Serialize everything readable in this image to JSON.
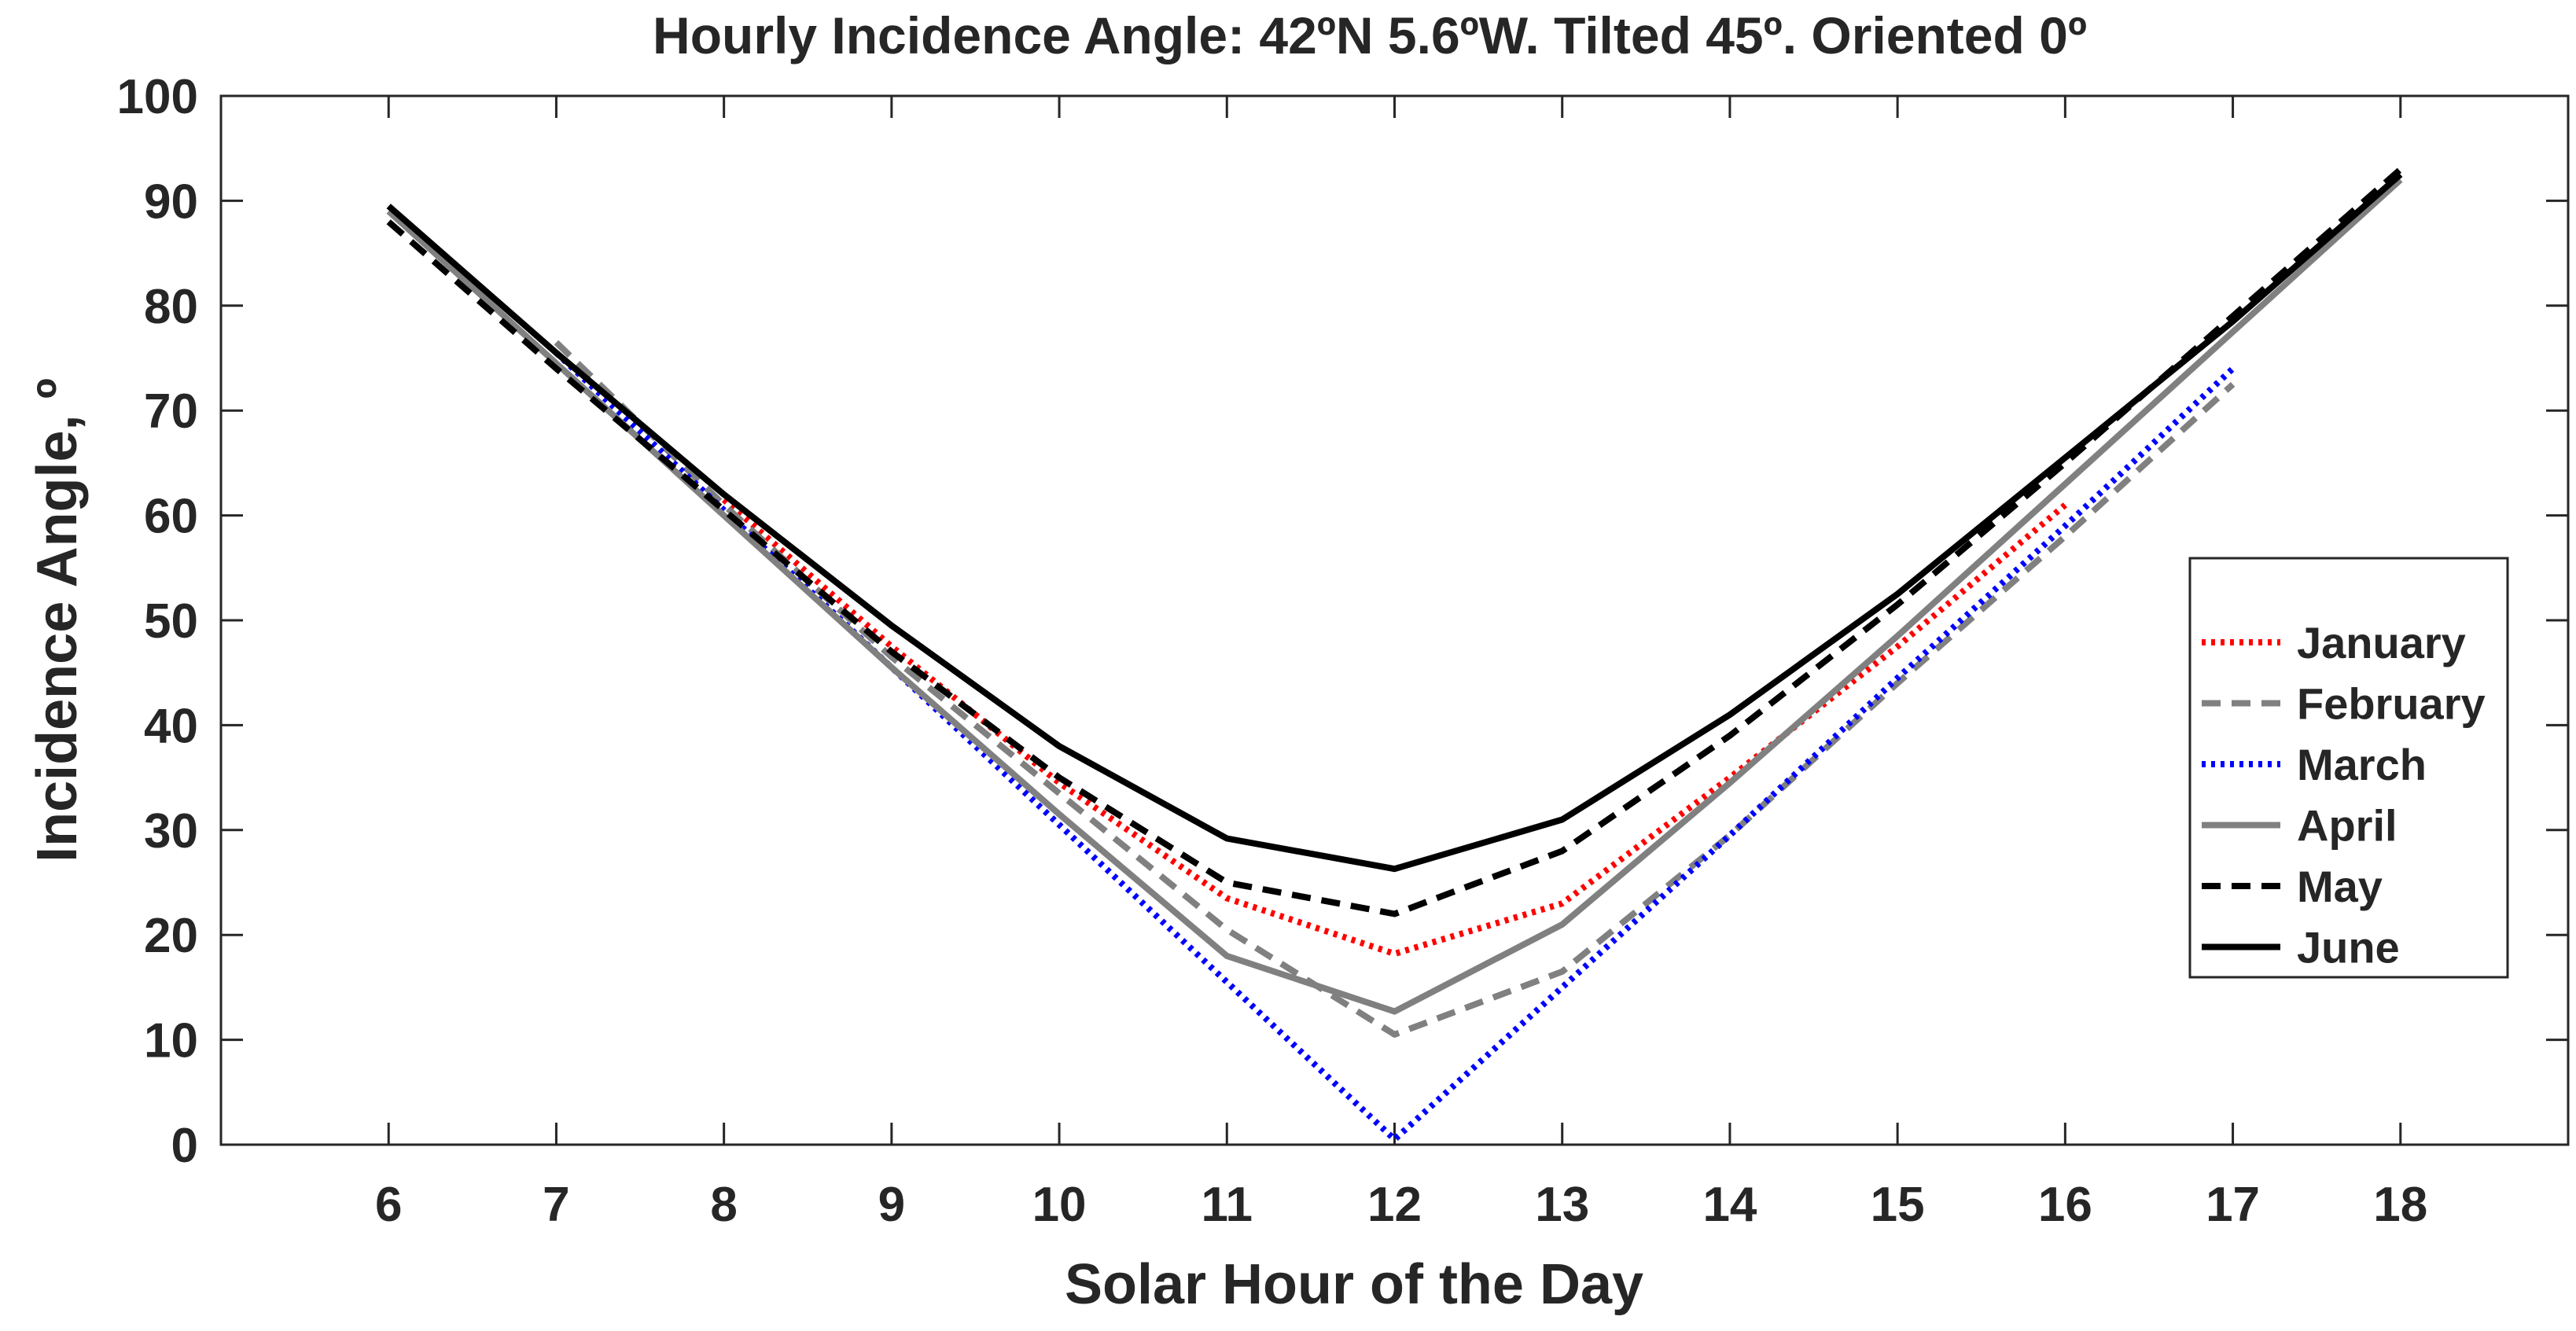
{
  "chart_data": {
    "type": "line",
    "title": "Hourly Incidence Angle: 42ºN 5.6ºW. Tilted 45º. Oriented 0º",
    "xlabel": "Solar Hour of the Day",
    "ylabel": "Incidence Angle, º",
    "xlim": [
      5,
      19
    ],
    "ylim": [
      0,
      100
    ],
    "xticks": [
      6,
      7,
      8,
      9,
      10,
      11,
      12,
      13,
      14,
      15,
      16,
      17,
      18
    ],
    "yticks": [
      0,
      10,
      20,
      30,
      40,
      50,
      60,
      70,
      80,
      90,
      100
    ],
    "grid": false,
    "legend_position": "center-right",
    "series": [
      {
        "name": "January",
        "color": "#ff0000",
        "dash": "dotted",
        "x": [
          8,
          9,
          10,
          11,
          12,
          13,
          14,
          15,
          16
        ],
        "y": [
          61.5,
          47.5,
          34.5,
          23.5,
          18.2,
          23,
          35,
          47.5,
          61
        ]
      },
      {
        "name": "February",
        "color": "#808080",
        "dash": "dashed",
        "x": [
          7,
          8,
          9,
          10,
          11,
          12,
          13,
          14,
          15,
          16,
          17
        ],
        "y": [
          76.5,
          61,
          46.5,
          33.5,
          20.5,
          10.5,
          16.5,
          29.5,
          44,
          58,
          72.5
        ]
      },
      {
        "name": "March",
        "color": "#0000ff",
        "dash": "dotted",
        "x": [
          7,
          8,
          9,
          10,
          11,
          12,
          13,
          14,
          15,
          16,
          17
        ],
        "y": [
          75.5,
          60.5,
          45.5,
          30.5,
          15.5,
          0.5,
          15,
          29.5,
          44.5,
          59,
          74
        ]
      },
      {
        "name": "April",
        "color": "#808080",
        "dash": "solid",
        "x": [
          6,
          7,
          8,
          9,
          10,
          11,
          12,
          13,
          14,
          15,
          16,
          17,
          18
        ],
        "y": [
          89,
          74.5,
          60,
          45.5,
          31.5,
          18,
          12.7,
          21,
          34.5,
          48.5,
          63,
          77.5,
          92
        ]
      },
      {
        "name": "May",
        "color": "#000000",
        "dash": "dashed",
        "x": [
          6,
          7,
          8,
          9,
          10,
          11,
          12,
          13,
          14,
          15,
          16,
          17,
          18
        ],
        "y": [
          88,
          74,
          60.5,
          47,
          35,
          25,
          22,
          28,
          39,
          51.5,
          65,
          79,
          93
        ]
      },
      {
        "name": "June",
        "color": "#000000",
        "dash": "solid",
        "x": [
          6,
          7,
          8,
          9,
          10,
          11,
          12,
          13,
          14,
          15,
          16,
          17,
          18
        ],
        "y": [
          89.5,
          75.5,
          62,
          49.5,
          38,
          29.2,
          26.3,
          31,
          41,
          52.5,
          65.5,
          78.5,
          92.5
        ]
      }
    ]
  }
}
